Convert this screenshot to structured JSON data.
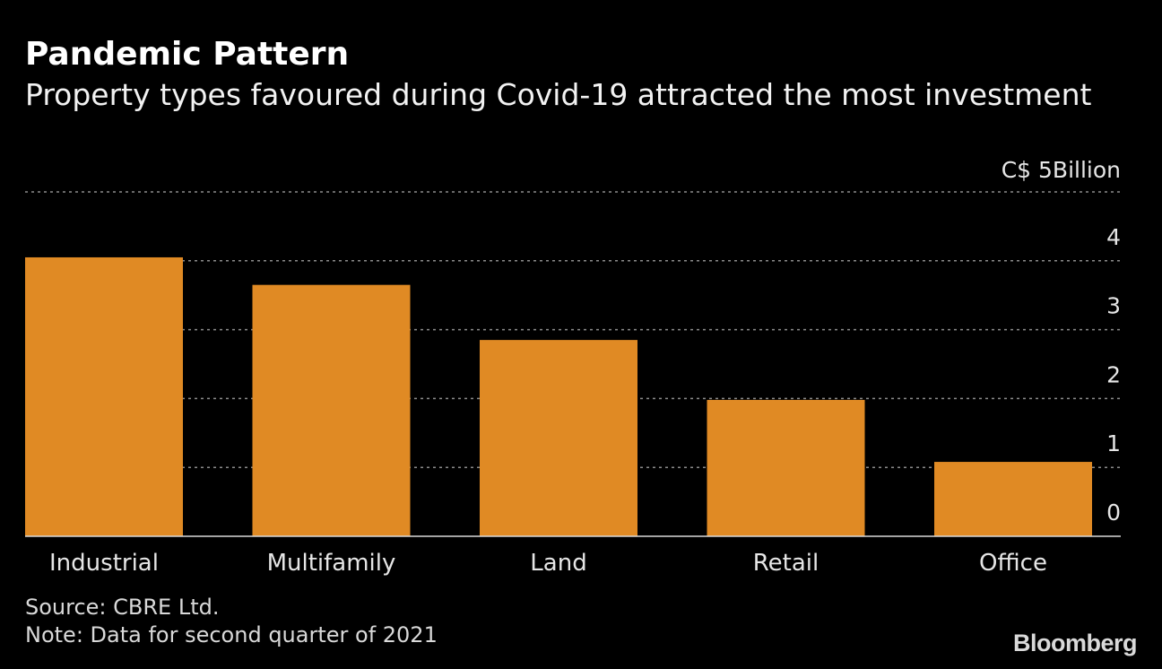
{
  "title": "Pandemic Pattern",
  "subtitle": "Property types favoured during Covid-19 attracted the most investment",
  "footer": {
    "source": "Source: CBRE Ltd.",
    "note": "Note: Data for second quarter of 2021"
  },
  "logo": "Bloomberg",
  "colors": {
    "background": "#000000",
    "bar": "#e08a24",
    "grid": "#8c8c8c",
    "text": "#ffffff"
  },
  "chart_data": {
    "type": "bar",
    "categories": [
      "Industrial",
      "Multifamily",
      "Land",
      "Retail",
      "Office"
    ],
    "values": [
      4.05,
      3.65,
      2.85,
      1.98,
      1.08
    ],
    "unit_label": "C$ 5Billion",
    "ylim": [
      0,
      5
    ],
    "yticks": [
      {
        "value": 0,
        "label": "0"
      },
      {
        "value": 1,
        "label": "1"
      },
      {
        "value": 2,
        "label": "2"
      },
      {
        "value": 3,
        "label": "3"
      },
      {
        "value": 4,
        "label": "4"
      }
    ],
    "grid": true,
    "grid_style": "dotted"
  }
}
